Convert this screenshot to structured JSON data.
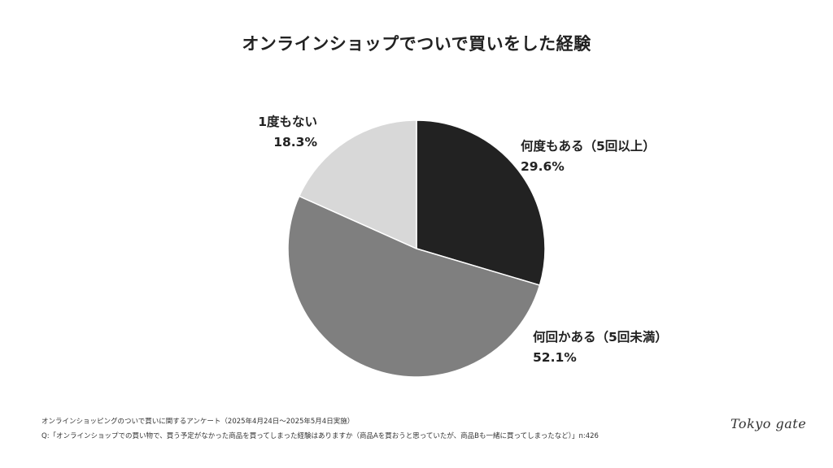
{
  "chart_data": {
    "type": "pie",
    "title": "オンラインショップでついで買いをした経験",
    "slices": [
      {
        "label": "何度もある（5回以上）",
        "value": 29.6,
        "value_label": "29.6%",
        "color": "#222222"
      },
      {
        "label": "何回かある（5回未満）",
        "value": 52.1,
        "value_label": "52.1%",
        "color": "#7f7f7f"
      },
      {
        "label": "1度もない",
        "value": 18.3,
        "value_label": "18.3%",
        "color": "#d8d8d8"
      }
    ],
    "start_angle_deg": 0,
    "direction": "clockwise"
  },
  "footer": {
    "survey": "オンラインショッピングのついで買いに関するアンケート（2025年4月24日〜2025年5月4日実施）",
    "question": "Q:「オンラインショップでの買い物で、買う予定がなかった商品を買ってしまった経験はありますか（商品Aを買おうと思っていたが、商品Bも一緒に買ってしまったなど）」n:426"
  },
  "brand": {
    "logo_text": "Tokyo gate"
  }
}
